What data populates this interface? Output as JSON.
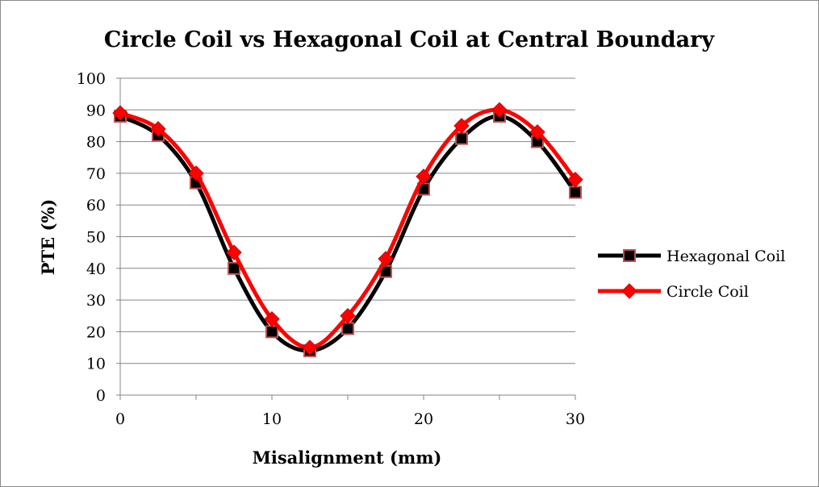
{
  "chart_data": {
    "type": "line",
    "title": "Circle Coil vs Hexagonal Coil at Central Boundary",
    "xlabel": "Misalignment (mm)",
    "ylabel": "PTE (%)",
    "xlim": [
      0,
      30
    ],
    "ylim": [
      0,
      100
    ],
    "x_ticks": [
      "0",
      "10",
      "20",
      "30"
    ],
    "y_ticks": [
      "0",
      "10",
      "20",
      "30",
      "40",
      "50",
      "60",
      "70",
      "80",
      "90",
      "100"
    ],
    "grid": "horizontal",
    "legend_position": "right",
    "x": [
      0,
      2.5,
      5,
      7.5,
      10,
      12.5,
      15,
      17.5,
      20,
      22.5,
      25,
      27.5,
      30
    ],
    "series": [
      {
        "name": "Hexagonal Coil",
        "color": "#000000",
        "marker": "square",
        "marker_color": "#000000",
        "marker_edge": "#c0504d",
        "values": [
          88,
          82,
          67,
          40,
          20,
          14,
          21,
          39,
          65,
          81,
          88,
          80,
          64
        ]
      },
      {
        "name": "Circle Coil",
        "color": "#ff0000",
        "marker": "diamond",
        "marker_color": "#ff0000",
        "values": [
          89,
          84,
          70,
          45,
          24,
          15,
          25,
          43,
          69,
          85,
          90,
          83,
          68
        ]
      }
    ]
  }
}
